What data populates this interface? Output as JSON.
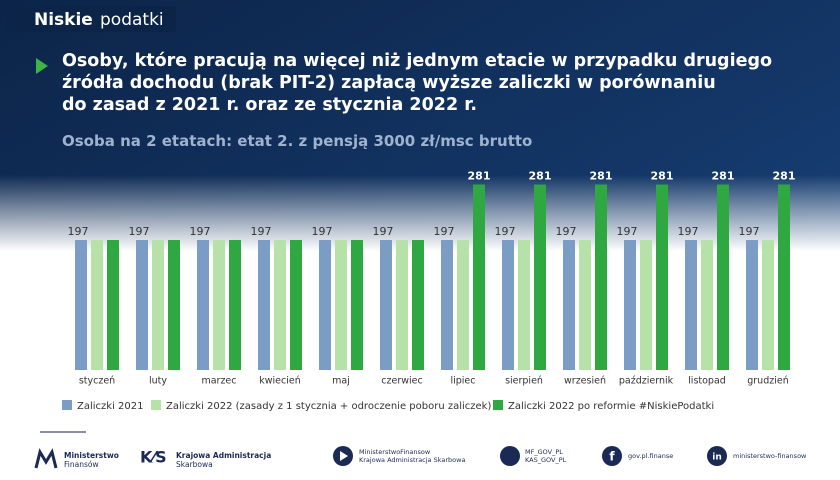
{
  "header": {
    "brand_bold": "Niskie",
    "brand": "podatki"
  },
  "chart_data": {
    "type": "grouped_bar",
    "title": "Osoby, które pracują na więcej niż jednym etacie w przypadku drugiego\nźródła dochodu (brak PIT-2) zapłacą wyższe zaliczki w porównaniu\ndo zasad z 2021 r. oraz ze stycznia 2022 r.",
    "subtitle": "Osoba na 2 etatach: etat 2. z pensją 3000 zł/msc brutto",
    "categories": [
      "styczeń",
      "luty",
      "marzec",
      "kwiecień",
      "maj",
      "czerwiec",
      "lipiec",
      "sierpień",
      "wrzesień",
      "październik",
      "listopad",
      "grudzień"
    ],
    "series": [
      {
        "name": "Zaliczki 2021",
        "color": "#7b9cc4",
        "values": [
          197,
          197,
          197,
          197,
          197,
          197,
          197,
          197,
          197,
          197,
          197,
          197
        ]
      },
      {
        "name": "Zaliczki 2022 (zasady z 1 stycznia + odroczenie poboru zaliczek)",
        "color": "#b6e2a9",
        "values": [
          197,
          197,
          197,
          197,
          197,
          197,
          197,
          197,
          197,
          197,
          197,
          197
        ]
      },
      {
        "name": "Zaliczki 2022 po reformie #NiskiePodatki",
        "color": "#2fa841",
        "values": [
          197,
          197,
          197,
          197,
          197,
          197,
          281,
          281,
          281,
          281,
          281,
          281
        ]
      }
    ]
  },
  "footer": {
    "mf": [
      "Ministerstwo",
      "Finansów"
    ],
    "kas": [
      "Krajowa Administracja",
      "Skarbowa"
    ],
    "youtube": [
      "MinisterstwoFinansow",
      "Krajowa Administracja Skarbowa"
    ],
    "twitter": [
      "MF_GOV_PL",
      "KAS_GOV_PL"
    ],
    "facebook": "gov.pl.finanse",
    "linkedin": "ministerstwo-finansow"
  }
}
